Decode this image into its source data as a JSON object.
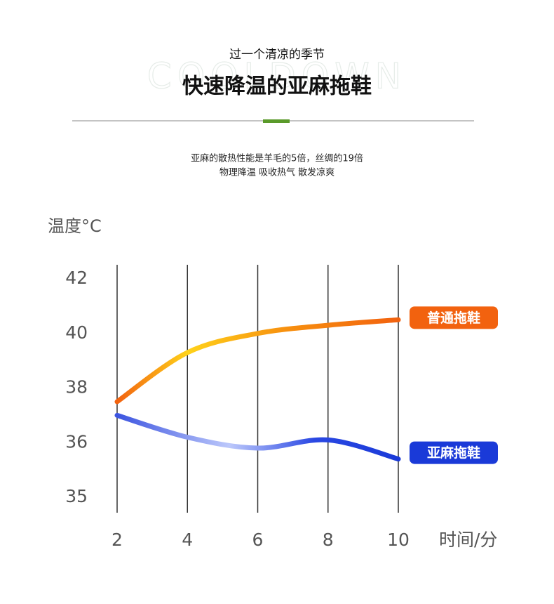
{
  "header": {
    "subtitle": "过一个清凉的季节",
    "title": "快速降温的亚麻拖鞋",
    "watermark": "COOLDOWN",
    "description": [
      "亚麻的散热性能是羊毛的5倍，丝绸的19倍",
      "物理降温 吸收热气 散发凉爽"
    ]
  },
  "chart_data": {
    "type": "line",
    "y_label": "温度°C",
    "x_label": "时间/分",
    "x": [
      2,
      4,
      6,
      8,
      10
    ],
    "xlim": [
      2,
      10
    ],
    "xticks": [
      2,
      4,
      6,
      8,
      10
    ],
    "ylim": [
      35,
      42
    ],
    "yticks": [
      35,
      36,
      38,
      40,
      42
    ],
    "grid": true,
    "series": [
      {
        "name": "普通拖鞋",
        "color": "#f2620f",
        "values": [
          37.5,
          39.3,
          40.0,
          40.3,
          40.5
        ]
      },
      {
        "name": "亚麻拖鞋",
        "color": "#1a3ad8",
        "values": [
          37.0,
          36.2,
          35.9,
          36.1,
          35.7
        ]
      }
    ]
  }
}
